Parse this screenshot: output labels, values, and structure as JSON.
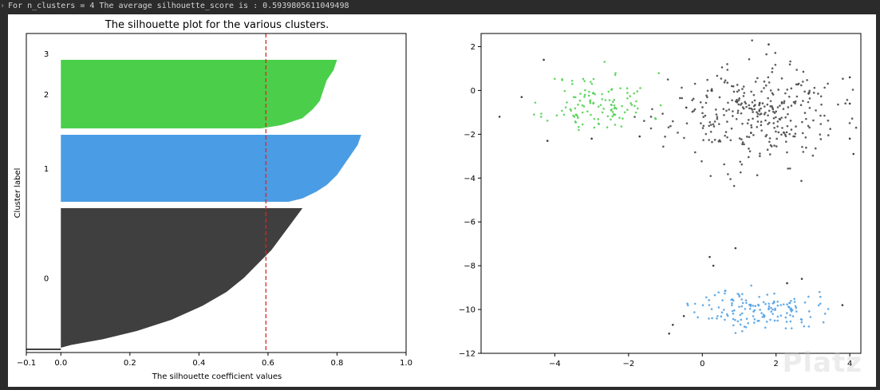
{
  "console": {
    "prompt_glyph": "›",
    "output_text": "For n_clusters = 4 The average silhouette_score is : 0.5939805611049498"
  },
  "watermark": {
    "text": "Platz"
  },
  "colors": {
    "cluster_0": "#3f3f3f",
    "cluster_1": "#4a9de4",
    "cluster_2": "#4bcf4b",
    "avg_line": "#d62728",
    "figure_bg": "#ffffff",
    "page_bg": "#2b2b2b"
  },
  "chart_data": [
    {
      "type": "area",
      "title": "The silhouette plot for the various clusters.",
      "xlabel": "The silhouette coefficient values",
      "ylabel": "Cluster label",
      "xlim": [
        -0.1,
        1.0
      ],
      "xticks": [
        "−0.1",
        "0.0",
        "0.2",
        "0.4",
        "0.6",
        "0.8",
        "1.0"
      ],
      "xtick_values": [
        -0.1,
        0.0,
        0.2,
        0.4,
        0.6,
        0.8,
        1.0
      ],
      "grid": false,
      "average_silhouette": 0.5939805611049498,
      "clusters": [
        {
          "label": "0",
          "color": "cluster_0",
          "max": 0.7,
          "profile": [
            [
              0,
              0.7
            ],
            [
              0.1,
              0.67
            ],
            [
              0.2,
              0.64
            ],
            [
              0.3,
              0.61
            ],
            [
              0.4,
              0.57
            ],
            [
              0.5,
              0.53
            ],
            [
              0.6,
              0.48
            ],
            [
              0.7,
              0.41
            ],
            [
              0.8,
              0.32
            ],
            [
              0.88,
              0.22
            ],
            [
              0.94,
              0.12
            ],
            [
              0.98,
              0.03
            ],
            [
              1.0,
              0.0
            ]
          ]
        },
        {
          "label": "1",
          "color": "cluster_1",
          "max": 0.87,
          "profile": [
            [
              0,
              0.87
            ],
            [
              0.15,
              0.86
            ],
            [
              0.3,
              0.84
            ],
            [
              0.45,
              0.82
            ],
            [
              0.6,
              0.8
            ],
            [
              0.75,
              0.77
            ],
            [
              0.85,
              0.74
            ],
            [
              0.95,
              0.7
            ],
            [
              1.0,
              0.66
            ]
          ]
        },
        {
          "label": "2",
          "color": "cluster_2",
          "max": 0.8,
          "profile": [
            [
              0,
              0.8
            ],
            [
              0.15,
              0.79
            ],
            [
              0.3,
              0.77
            ],
            [
              0.45,
              0.76
            ],
            [
              0.6,
              0.75
            ],
            [
              0.72,
              0.73
            ],
            [
              0.85,
              0.7
            ],
            [
              0.95,
              0.64
            ],
            [
              1.0,
              0.58
            ]
          ]
        },
        {
          "label": "3",
          "color": "cluster_2",
          "max": 0.0,
          "profile": []
        }
      ]
    },
    {
      "type": "scatter",
      "title": "",
      "xlabel": "",
      "ylabel": "",
      "xlim": [
        -6.0,
        4.3
      ],
      "ylim": [
        -12.0,
        2.6
      ],
      "xticks": [
        "−4",
        "−2",
        "0",
        "2",
        "4"
      ],
      "xtick_values": [
        -4,
        -2,
        0,
        2,
        4
      ],
      "yticks": [
        "2",
        "0",
        "−2",
        "−4",
        "−6",
        "−8",
        "−10",
        "−12"
      ],
      "ytick_values": [
        2,
        0,
        -2,
        -4,
        -6,
        -8,
        -10,
        -12
      ],
      "grid": false,
      "clusters": [
        {
          "name": "",
          "color": "cluster_2",
          "center": [
            -2.8,
            -0.6
          ],
          "spread": [
            0.7,
            0.7
          ],
          "count": 120,
          "seed": 11
        },
        {
          "name": "",
          "color": "cluster_0",
          "center": [
            1.4,
            -1.1
          ],
          "spread": [
            1.1,
            1.1
          ],
          "count": 330,
          "seed": 23
        },
        {
          "name": "",
          "color": "cluster_1",
          "center": [
            1.5,
            -10.0
          ],
          "spread": [
            0.8,
            0.45
          ],
          "count": 150,
          "seed": 37
        }
      ],
      "outliers": [
        [
          -5.5,
          -1.2
        ],
        [
          -4.9,
          -0.3
        ],
        [
          -4.3,
          1.4
        ],
        [
          -4.2,
          -2.3
        ],
        [
          -3.0,
          -2.2
        ],
        [
          4.0,
          0.6
        ],
        [
          4.0,
          -0.6
        ],
        [
          4.1,
          -2.9
        ],
        [
          4.0,
          -2.2
        ],
        [
          3.8,
          -9.8
        ],
        [
          -0.8,
          -10.7
        ],
        [
          -0.9,
          -11.1
        ],
        [
          -0.5,
          -10.3
        ],
        [
          0.3,
          -8.0
        ],
        [
          0.2,
          -7.6
        ],
        [
          0.9,
          -7.2
        ],
        [
          2.3,
          -8.8
        ],
        [
          2.7,
          -8.6
        ],
        [
          1.8,
          2.1
        ],
        [
          -1.7,
          -2.1
        ]
      ]
    }
  ]
}
